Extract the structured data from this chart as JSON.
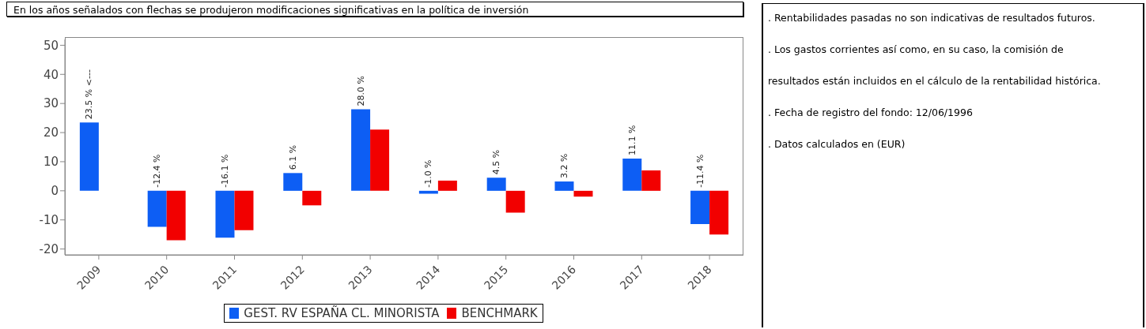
{
  "chart_data": {
    "type": "bar",
    "title": "En los años señalados con flechas se produjeron modificaciones significativas en la política de inversión",
    "categories": [
      "2009",
      "2010",
      "2011",
      "2012",
      "2013",
      "2014",
      "2015",
      "2016",
      "2017",
      "2018"
    ],
    "series": [
      {
        "name": "GEST. RV ESPAÑA CL. MINORISTA",
        "color": "#0d5ef4",
        "values": [
          23.5,
          -12.4,
          -16.1,
          6.1,
          28.0,
          -1.0,
          4.5,
          3.2,
          11.1,
          -11.4
        ],
        "value_labels": [
          "23.5 % <---",
          "-12.4 %",
          "-16.1 %",
          "6.1 %",
          "28.0 %",
          "-1.0 %",
          "4.5 %",
          "3.2 %",
          "11.1 %",
          "-11.4 %"
        ]
      },
      {
        "name": "BENCHMARK",
        "color": "#f20000",
        "values": [
          null,
          -17,
          -13.5,
          -5,
          21,
          3.5,
          -7.5,
          -2,
          7,
          -15
        ]
      }
    ],
    "ylim": [
      -22,
      52
    ],
    "yticks": [
      -20,
      -10,
      0,
      10,
      20,
      30,
      40,
      50
    ],
    "grid": false,
    "legend": "bottom",
    "annotations": [
      ". Rentabilidades pasadas no son indicativas de resultados futuros.",
      ". Los gastos corrientes así como, en su caso, la comisión de resultados están incluidos en el cálculo de la rentabilidad histórica.",
      ". Fecha de registro del fondo: 12/06/1996",
      ". Datos calculados en (EUR)"
    ]
  }
}
